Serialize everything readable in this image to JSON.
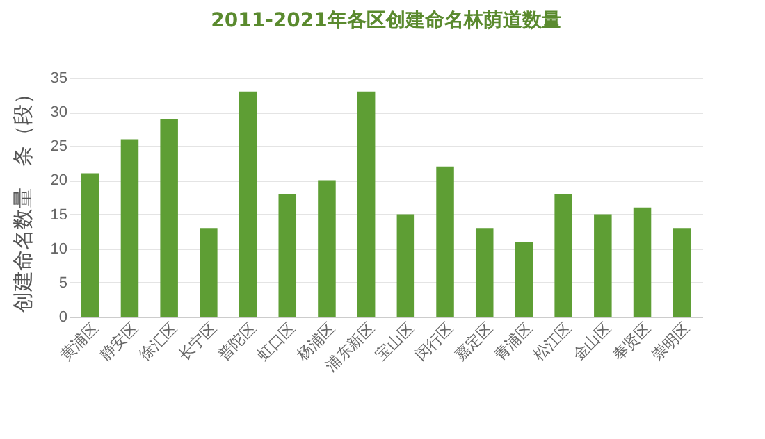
{
  "chart_data": {
    "type": "bar",
    "title": "2011-2021年各区创建命名林荫道数量",
    "ylabel": "创建命名数量　条（段）",
    "categories": [
      "黄浦区",
      "静安区",
      "徐汇区",
      "长宁区",
      "普陀区",
      "虹口区",
      "杨浦区",
      "浦东新区",
      "宝山区",
      "闵行区",
      "嘉定区",
      "青浦区",
      "松江区",
      "金山区",
      "奉贤区",
      "崇明区"
    ],
    "values": [
      21,
      26,
      29,
      13,
      33,
      18,
      20,
      33,
      15,
      22,
      13,
      11,
      18,
      15,
      16,
      13
    ],
    "color": "#5e9e34",
    "ylim": [
      0,
      35
    ],
    "yticks": [
      0,
      5,
      10,
      15,
      20,
      25,
      30,
      35
    ],
    "grid": "y"
  }
}
